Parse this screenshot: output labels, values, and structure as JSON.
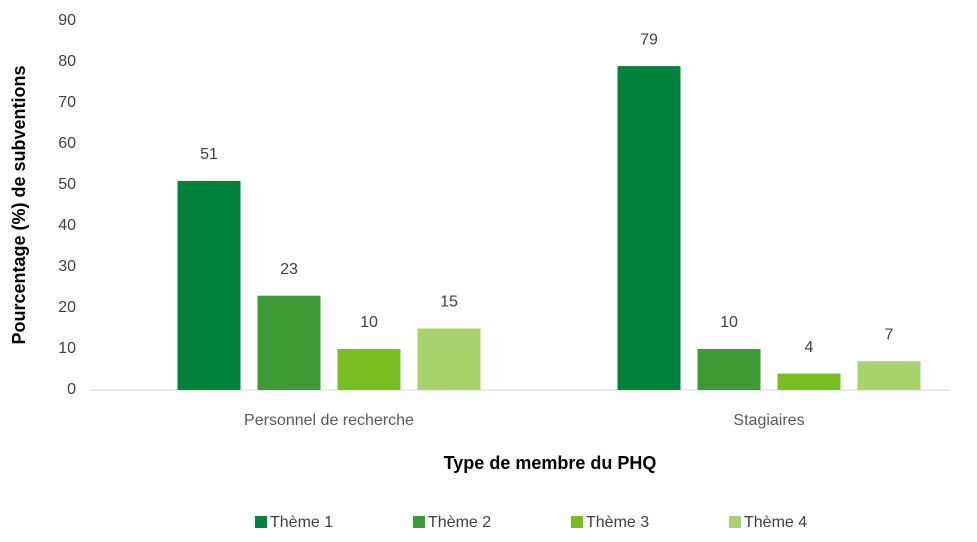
{
  "chart_data": {
    "type": "bar",
    "x_label": "Type de membre du PHQ",
    "y_label": "Pourcentage (%) de subventions",
    "categories": [
      "Personnel de recherche",
      "Stagiaires"
    ],
    "series": [
      {
        "name": "Thème 1",
        "color": "#00843d",
        "values": [
          51,
          79
        ]
      },
      {
        "name": "Thème 2",
        "color": "#3d9b35",
        "values": [
          23,
          10
        ]
      },
      {
        "name": "Thème 3",
        "color": "#78be20",
        "values": [
          10,
          4
        ]
      },
      {
        "name": "Thème 4",
        "color": "#a8d26b",
        "values": [
          15,
          7
        ]
      }
    ],
    "ylim": [
      0,
      90
    ],
    "yticks": [
      0,
      10,
      20,
      30,
      40,
      50,
      60,
      70,
      80,
      90
    ],
    "grid": false,
    "legend": "bottom"
  }
}
